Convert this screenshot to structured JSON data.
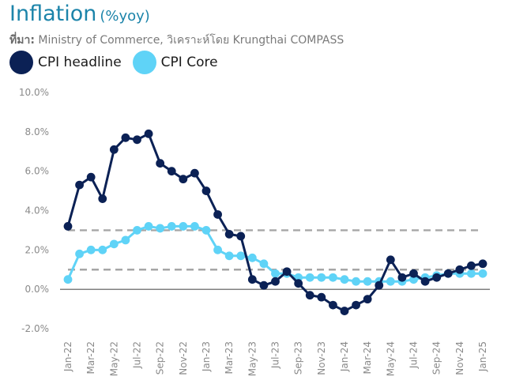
{
  "header": {
    "title": "Inflation",
    "unit": "(%yoy)",
    "source_label": "ที่มา:",
    "source_text": " Ministry of Commerce, วิเคราะห์โดย Krungthai COMPASS"
  },
  "chart_data": {
    "type": "line",
    "title": "Inflation",
    "ylim": [
      -2,
      10
    ],
    "yticks": [
      -2,
      0,
      2,
      4,
      6,
      8,
      10
    ],
    "ytick_labels": [
      "-2.0%",
      "0.0%",
      "2.0%",
      "4.0%",
      "6.0%",
      "8.0%",
      "10.0%"
    ],
    "xtick_labels": [
      "Jan-22",
      "Mar-22",
      "May-22",
      "Jul-22",
      "Sep-22",
      "Nov-22",
      "Jan-23",
      "Mar-23",
      "May-23",
      "Jul-23",
      "Sep-23",
      "Nov-23",
      "Jan-24",
      "Mar-24",
      "May-24",
      "Jul-24",
      "Sep-24",
      "Nov-24",
      "Jan-25"
    ],
    "x": [
      "Jan-22",
      "Feb-22",
      "Mar-22",
      "Apr-22",
      "May-22",
      "Jun-22",
      "Jul-22",
      "Aug-22",
      "Sep-22",
      "Oct-22",
      "Nov-22",
      "Dec-22",
      "Jan-23",
      "Feb-23",
      "Mar-23",
      "Apr-23",
      "May-23",
      "Jun-23",
      "Jul-23",
      "Aug-23",
      "Sep-23",
      "Oct-23",
      "Nov-23",
      "Dec-23",
      "Jan-24",
      "Feb-24",
      "Mar-24",
      "Apr-24",
      "May-24",
      "Jun-24",
      "Jul-24",
      "Aug-24",
      "Sep-24",
      "Oct-24",
      "Nov-24",
      "Dec-24",
      "Jan-25"
    ],
    "series": [
      {
        "name": "CPI headline",
        "color": "#0b2155",
        "values": [
          3.2,
          5.3,
          5.7,
          4.6,
          7.1,
          7.7,
          7.6,
          7.9,
          6.4,
          6.0,
          5.6,
          5.9,
          5.0,
          3.8,
          2.8,
          2.7,
          0.5,
          0.2,
          0.4,
          0.9,
          0.3,
          -0.3,
          -0.4,
          -0.8,
          -1.1,
          -0.8,
          -0.5,
          0.2,
          1.5,
          0.6,
          0.8,
          0.4,
          0.6,
          0.8,
          1.0,
          1.2,
          1.3
        ]
      },
      {
        "name": "CPI Core",
        "color": "#5fd3f7",
        "values": [
          0.5,
          1.8,
          2.0,
          2.0,
          2.3,
          2.5,
          3.0,
          3.2,
          3.1,
          3.2,
          3.2,
          3.2,
          3.0,
          2.0,
          1.7,
          1.7,
          1.6,
          1.3,
          0.8,
          0.8,
          0.6,
          0.6,
          0.6,
          0.6,
          0.5,
          0.4,
          0.4,
          0.4,
          0.4,
          0.4,
          0.5,
          0.6,
          0.7,
          0.8,
          0.8,
          0.8,
          0.8
        ]
      }
    ],
    "reference_lines": [
      1,
      3
    ],
    "grid": false,
    "legend_position": "top-left"
  }
}
